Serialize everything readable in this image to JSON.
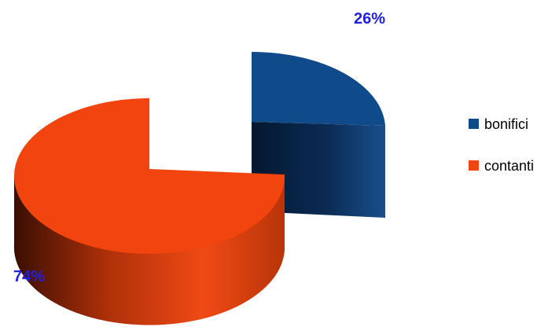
{
  "chart_data": {
    "type": "pie",
    "style": "3d-exploded",
    "categories": [
      "bonifici",
      "contanti"
    ],
    "values": [
      26,
      74
    ],
    "value_labels": [
      "26%",
      "74%"
    ],
    "legend": {
      "position": "right",
      "entries": [
        {
          "label": "bonifici",
          "color": "#0f4a8a"
        },
        {
          "label": "contanti",
          "color": "#f2440f"
        }
      ]
    },
    "label_color": "#2020e0"
  }
}
